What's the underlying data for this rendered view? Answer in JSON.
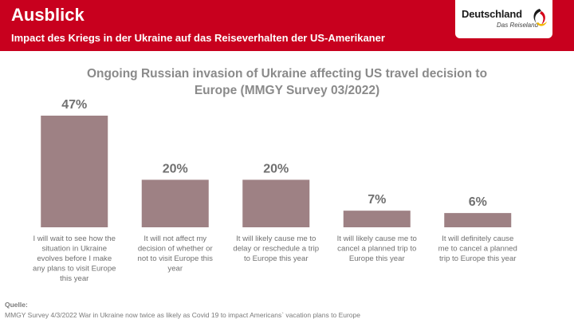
{
  "header": {
    "title": "Ausblick",
    "subtitle": "Impact des Kriegs in der Ukraine auf das Reiseverhalten der US-Amerikaner"
  },
  "logo": {
    "name": "Deutschland",
    "tagline": "Das Reiseland",
    "icon": "deutschland-swirl-logo"
  },
  "colors": {
    "header_bg": "#c8001e",
    "bar": "#9e8184",
    "title_gray": "#8a8a8a",
    "text_gray": "#707070"
  },
  "chart_data": {
    "type": "bar",
    "title": "Ongoing Russian invasion of Ukraine affecting US travel decision to Europe (MMGY Survey 03/2022)",
    "title_lines": [
      "Ongoing Russian invasion of Ukraine affecting US travel decision to",
      "Europe (MMGY Survey 03/2022)"
    ],
    "xlabel": "",
    "ylabel": "",
    "ylim": [
      0,
      50
    ],
    "grid": false,
    "categories": [
      "I will wait to see how the situation in Ukraine evolves before I make any plans to visit Europe this year",
      "It will not affect my decision of whether or not to visit Europe this year",
      "It will  likely cause me to delay or reschedule a trip to Europe this year",
      "It will likely cause me to cancel a planned trip to Europe this year",
      "It will definitely cause me to cancel a planned trip to Europe this year"
    ],
    "category_lines": [
      [
        "I will wait to see how the",
        "situation in Ukraine",
        "evolves before I make",
        "any plans to visit Europe",
        "this year"
      ],
      [
        "It will not affect my",
        "decision of whether or",
        "not to visit Europe this",
        "year"
      ],
      [
        "It will  likely cause me to",
        "delay or reschedule a trip",
        "to Europe this year"
      ],
      [
        "It will likely cause me to",
        "cancel a planned trip to",
        "Europe this year"
      ],
      [
        "It will definitely cause",
        "me to cancel a planned",
        "trip to Europe this year"
      ]
    ],
    "values": [
      47,
      20,
      20,
      7,
      6
    ],
    "value_labels": [
      "47%",
      "20%",
      "20%",
      "7%",
      "6%"
    ]
  },
  "footer": {
    "source_label": "Quelle:",
    "source_text": "MMGY Survey 4/3/2022 War in Ukraine now twice as likely as Covid 19 to impact Americans` vacation plans to Europe"
  }
}
